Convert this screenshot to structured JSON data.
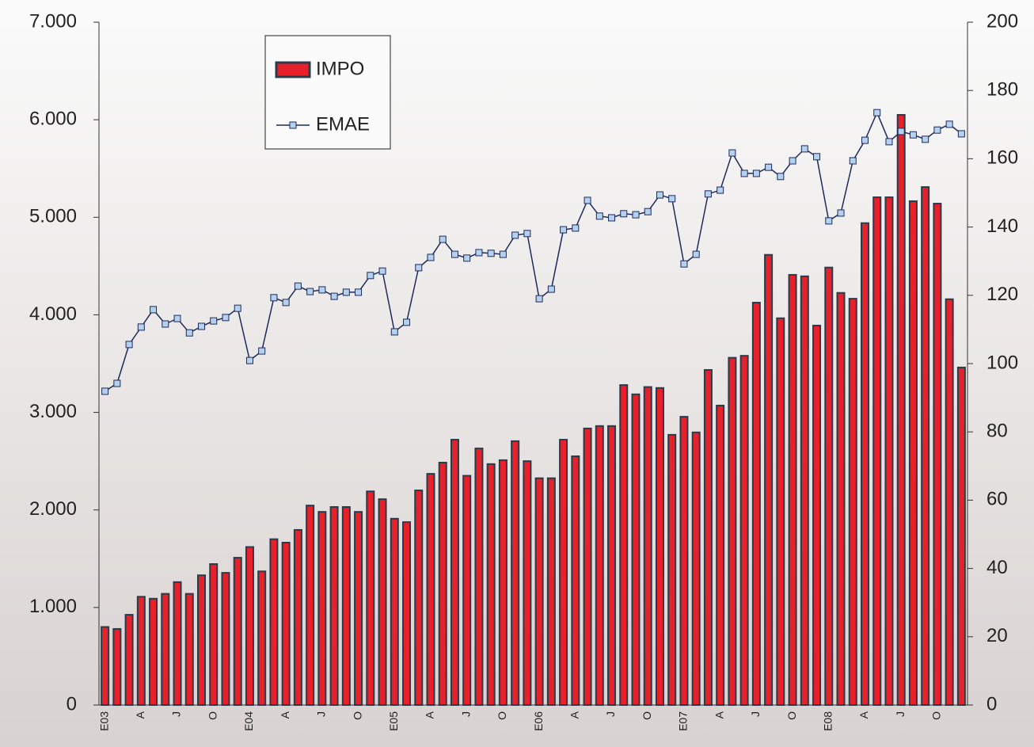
{
  "chart_data": {
    "type": "bar-line",
    "categories": [
      "E03",
      null,
      null,
      "A",
      null,
      null,
      "J",
      null,
      null,
      "O",
      null,
      null,
      "E04",
      null,
      null,
      "A",
      null,
      null,
      "J",
      null,
      null,
      "O",
      null,
      null,
      "E05",
      null,
      null,
      "A",
      null,
      null,
      "J",
      null,
      null,
      "O",
      null,
      null,
      "E06",
      null,
      null,
      "A",
      null,
      null,
      "J",
      null,
      null,
      "O",
      null,
      null,
      "E07",
      null,
      null,
      "A",
      null,
      null,
      "J",
      null,
      null,
      "O",
      null,
      null,
      "E08",
      null,
      null,
      "A",
      null,
      null,
      "J",
      null,
      null,
      "O",
      null,
      null
    ],
    "series": [
      {
        "name": "IMPO",
        "type": "bar",
        "color": "#e8202a",
        "values": [
          800,
          780,
          925,
          1110,
          1090,
          1140,
          1260,
          1140,
          1330,
          1445,
          1355,
          1510,
          1620,
          1370,
          1700,
          1665,
          1795,
          2045,
          1980,
          2030,
          2030,
          1980,
          2190,
          2110,
          1910,
          1875,
          2200,
          2370,
          2485,
          2720,
          2350,
          2630,
          2470,
          2510,
          2705,
          2500,
          2325,
          2325,
          2720,
          2550,
          2835,
          2860,
          2860,
          3280,
          3185,
          3260,
          3250,
          2770,
          2955,
          2795,
          3435,
          3070,
          3560,
          3580,
          4125,
          4615,
          3965,
          4410,
          4395,
          3890,
          4485,
          4225,
          4165,
          4940,
          5205,
          5205,
          6050,
          5165,
          5310,
          5140,
          4160,
          3460
        ]
      },
      {
        "name": "EMAE",
        "type": "line",
        "axis": "y2",
        "color": "#1f2a5a",
        "values": [
          91.9,
          94.2,
          105.6,
          110.7,
          115.8,
          111.6,
          113.2,
          109,
          110.9,
          112.5,
          113.5,
          116.2,
          100.9,
          103.7,
          119.3,
          117.9,
          122.7,
          121.1,
          121.6,
          119.7,
          120.9,
          120.9,
          125.8,
          127.1,
          109.3,
          112.1,
          128.1,
          131.1,
          136.4,
          132,
          130.9,
          132.5,
          132.3,
          132,
          137.6,
          138.1,
          119,
          121.8,
          139.2,
          139.7,
          147.8,
          143.2,
          142.7,
          143.9,
          143.6,
          144.5,
          149.4,
          148.3,
          129.2,
          132,
          149.7,
          150.8,
          161.7,
          155.7,
          155.7,
          157.5,
          154.8,
          159.4,
          162.9,
          160.6,
          141.8,
          144.1,
          159.4,
          165.4,
          173.5,
          165,
          168,
          167,
          165.7,
          168.4,
          170.1,
          167.3
        ]
      }
    ],
    "ylim": [
      0,
      7000
    ],
    "yticks": [
      0,
      {
        "value": 1000,
        "label": "1.000"
      },
      {
        "value": 2000,
        "label": "2.000"
      },
      {
        "value": 3000,
        "label": "3.000"
      },
      {
        "value": 4000,
        "label": "4.000"
      },
      {
        "value": 5000,
        "label": "5.000"
      },
      {
        "value": 6000,
        "label": "6.000"
      },
      {
        "value": 7000,
        "label": "7.000"
      }
    ],
    "y2lim": [
      0,
      200
    ],
    "y2ticks": [
      0,
      20,
      40,
      60,
      80,
      100,
      120,
      140,
      160,
      180,
      200
    ],
    "legend": "top-left"
  }
}
